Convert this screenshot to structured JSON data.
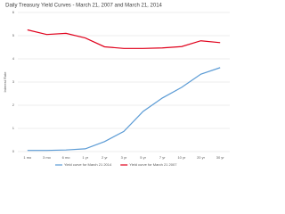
{
  "chart_data": {
    "type": "line",
    "title": "Daily Treasury Yield Curves - March 21, 2007 and March 21, 2014",
    "y_label": "Interest Rate",
    "categories": [
      "1 mo",
      "3 mo",
      "6 mo",
      "1 yr",
      "2 yr",
      "3 yr",
      "5 yr",
      "7 yr",
      "10 yr",
      "20 yr",
      "30 yr"
    ],
    "series": [
      {
        "name": "Yield curve for March 21 2014",
        "color": "#5b9bd5",
        "values": [
          0.05,
          0.05,
          0.07,
          0.12,
          0.43,
          0.87,
          1.73,
          2.31,
          2.77,
          3.34,
          3.62
        ]
      },
      {
        "name": "Yield curve for March 21 2007",
        "color": "#e0001b",
        "values": [
          5.25,
          5.05,
          5.1,
          4.9,
          4.52,
          4.45,
          4.45,
          4.47,
          4.53,
          4.78,
          4.7
        ]
      }
    ],
    "ylim": [
      0,
      6
    ],
    "yticks": [
      0,
      1,
      2,
      3,
      4,
      5,
      6
    ],
    "grid": true
  }
}
